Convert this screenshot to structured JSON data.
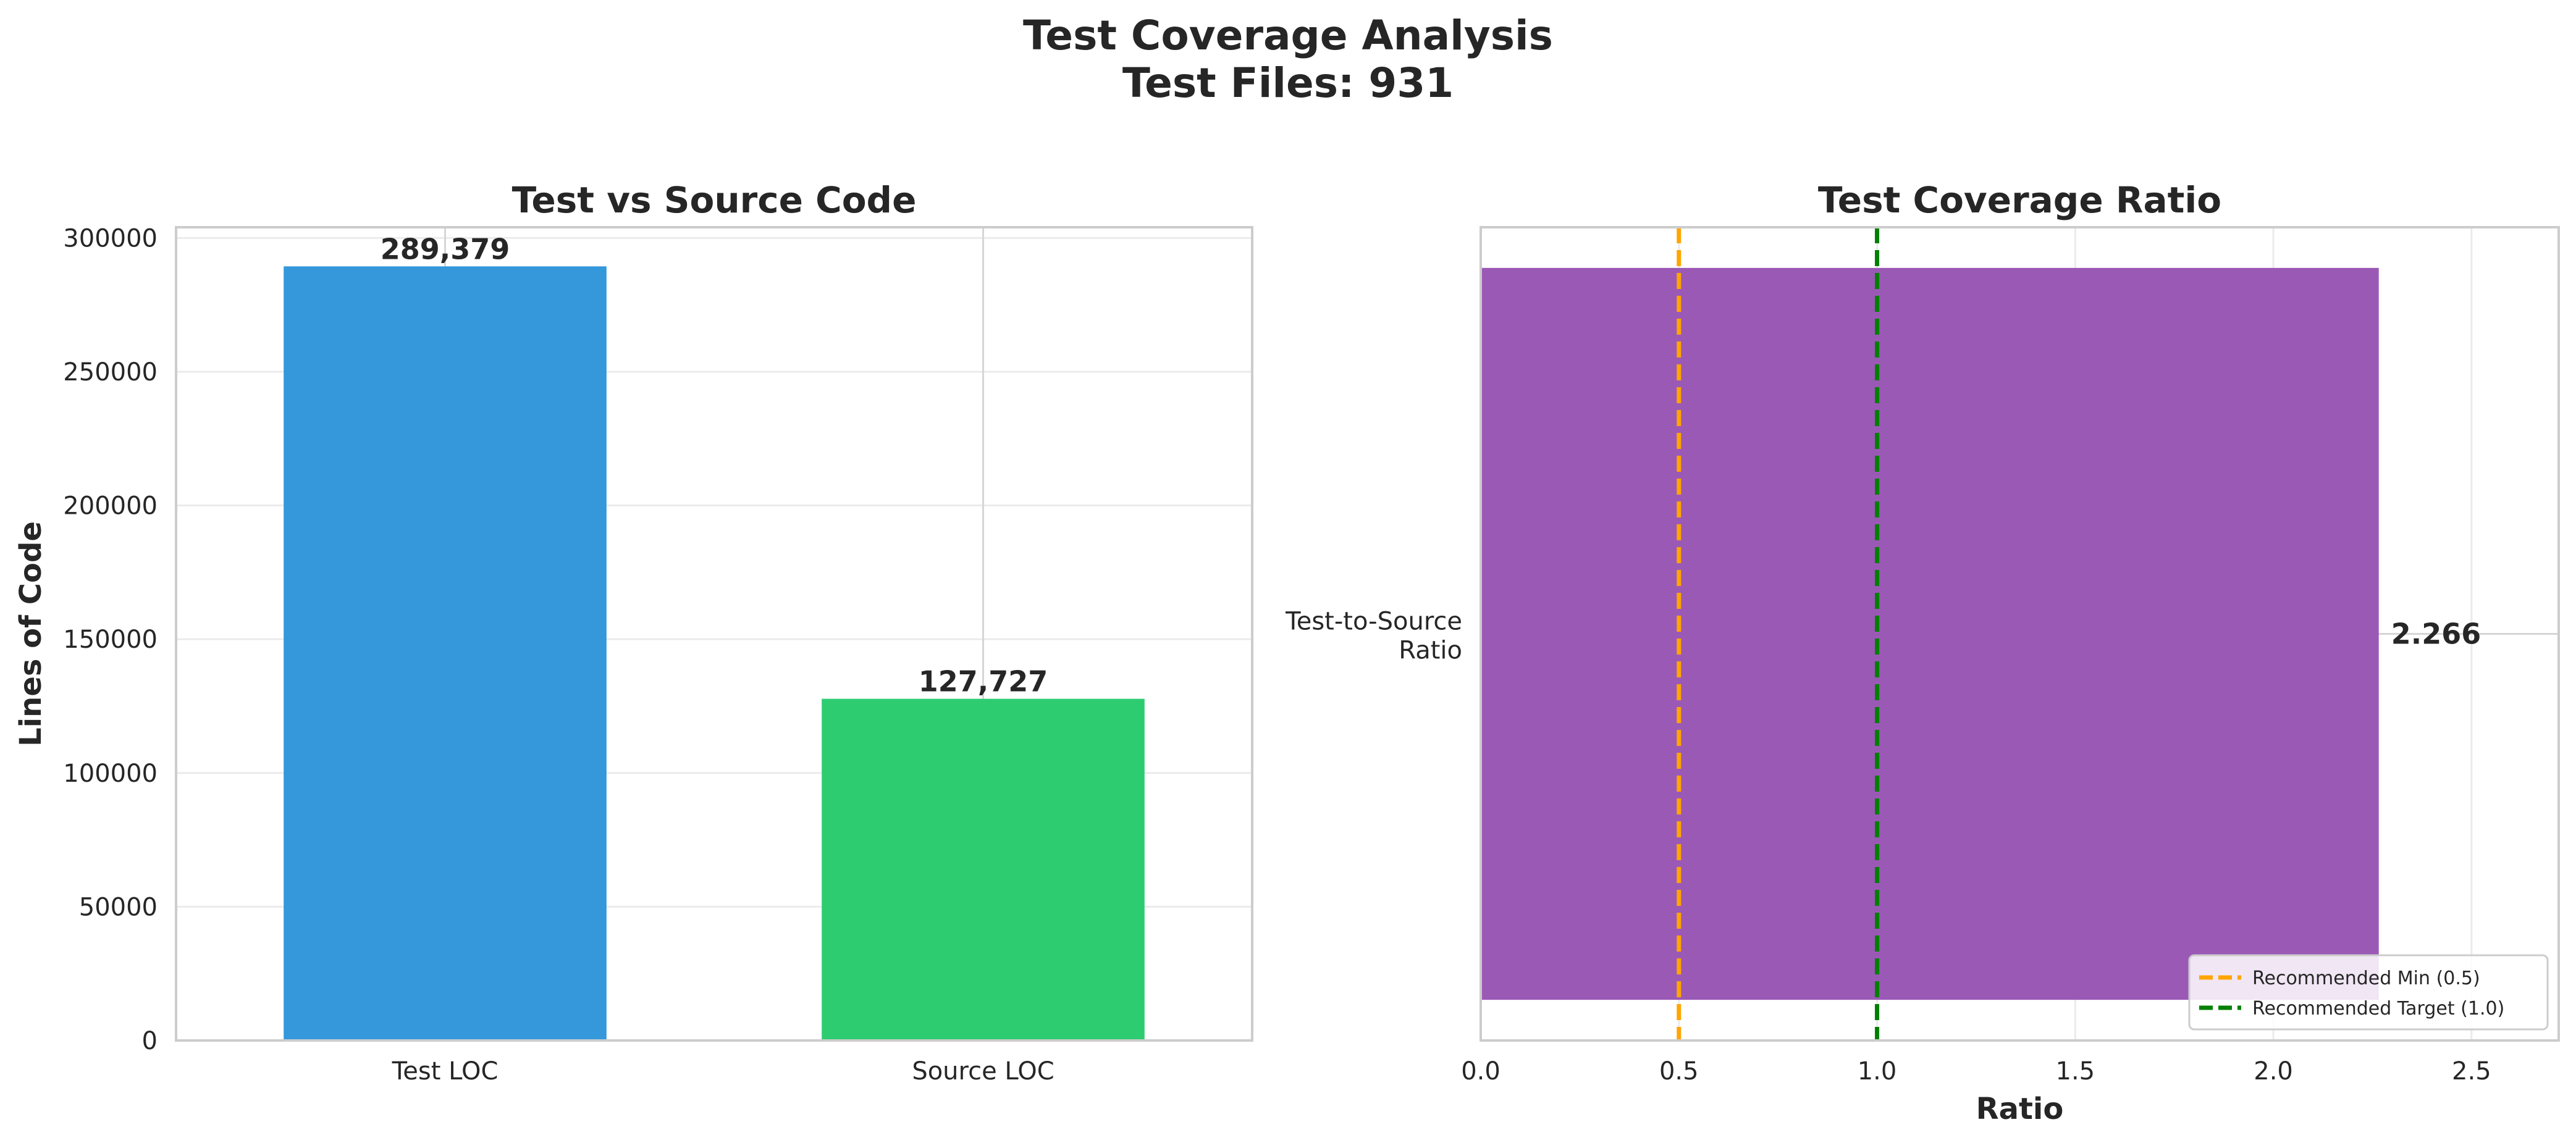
{
  "figure": {
    "title_line1": "Test Coverage Analysis",
    "title_line2": "Test Files: 931"
  },
  "chart_data": [
    {
      "type": "bar",
      "title": "Test vs Source Code",
      "categories": [
        "Test LOC",
        "Source LOC"
      ],
      "values": [
        289379,
        127727
      ],
      "value_labels": [
        "289,379",
        "127,727"
      ],
      "colors": [
        "#3498db",
        "#2ecc71"
      ],
      "xlabel": "",
      "ylabel": "Lines of Code",
      "ylim": [
        0,
        304000
      ],
      "yticks": [
        0,
        50000,
        100000,
        150000,
        200000,
        250000,
        300000
      ],
      "grid": true
    },
    {
      "type": "bar",
      "orientation": "horizontal",
      "title": "Test Coverage Ratio",
      "categories": [
        "Test-to-Source Ratio"
      ],
      "category_label_lines": [
        "Test-to-Source",
        "Ratio"
      ],
      "values": [
        2.266
      ],
      "value_labels": [
        "2.266"
      ],
      "colors": [
        "#9b59b6"
      ],
      "xlabel": "Ratio",
      "ylabel": "",
      "xlim": [
        0,
        2.72
      ],
      "xticks": [
        0.0,
        0.5,
        1.0,
        1.5,
        2.0,
        2.5
      ],
      "xtick_labels": [
        "0.0",
        "0.5",
        "1.0",
        "1.5",
        "2.0",
        "2.5"
      ],
      "reference_lines": [
        {
          "value": 0.5,
          "label": "Recommended Min (0.5)",
          "color": "#ffa500",
          "style": "dashed"
        },
        {
          "value": 1.0,
          "label": "Recommended Target (1.0)",
          "color": "#008000",
          "style": "dashed"
        }
      ],
      "legend_position": "lower-right",
      "grid": true
    }
  ]
}
